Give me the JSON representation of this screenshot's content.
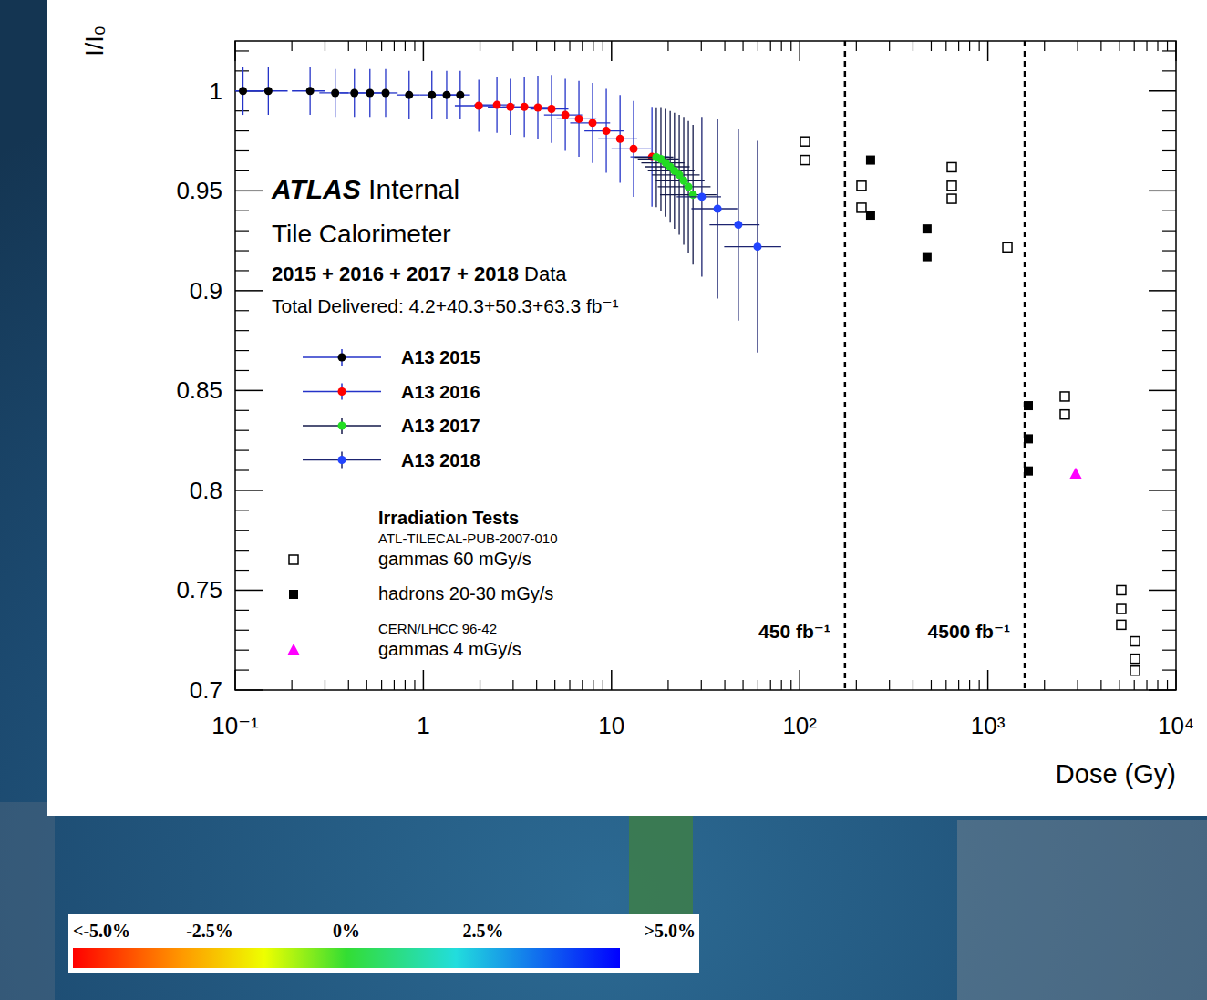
{
  "chart_data": {
    "type": "scatter",
    "x_label": "Dose (Gy)",
    "y_label": "I/I₀",
    "log": "x",
    "xlim": [
      0.1,
      10000
    ],
    "ylim": [
      0.7,
      1.025
    ],
    "xticks": [
      {
        "value": 0.1,
        "label": "10⁻¹"
      },
      1,
      10,
      {
        "value": 100,
        "label": "10²"
      },
      {
        "value": 1000,
        "label": "10³"
      },
      {
        "value": 10000,
        "label": "10⁴"
      }
    ],
    "yticks": [
      0.7,
      0.75,
      0.8,
      0.85,
      0.9,
      0.95,
      1
    ],
    "annotations": {
      "experiment": "ATLAS",
      "status": "Internal",
      "detector": "Tile Calorimeter",
      "years": "2015 + 2016 + 2017 + 2018",
      "data_word": "Data",
      "delivered": "Total Delivered: 4.2+40.3+50.3+63.3 fb⁻¹"
    },
    "legend": "left",
    "legend_title": "Irradiation Tests",
    "series": [
      {
        "name": "A13 2015",
        "color": "#000000",
        "marker": "circle",
        "x": [
          0.11,
          0.15,
          0.25,
          0.34,
          0.43,
          0.52,
          0.63,
          0.84,
          1.11,
          1.33,
          1.57
        ],
        "values": [
          1.0,
          1.0,
          1.0,
          0.999,
          0.999,
          0.999,
          0.999,
          0.998,
          0.998,
          0.998,
          0.998
        ],
        "x_errors": [
          0.03,
          0.04,
          0.05,
          0.06,
          0.07,
          0.08,
          0.1,
          0.12,
          0.15,
          0.18,
          0.2
        ],
        "y_errors": [
          0.012,
          0.012,
          0.012,
          0.012,
          0.012,
          0.012,
          0.012,
          0.012,
          0.012,
          0.012,
          0.012
        ]
      },
      {
        "name": "A13 2016",
        "color": "#ff0000",
        "marker": "circle",
        "x": [
          1.97,
          2.46,
          2.9,
          3.44,
          4.06,
          4.8,
          5.68,
          6.71,
          7.93,
          9.38,
          11.1,
          13.1,
          16.4
        ],
        "values": [
          0.9926,
          0.993,
          0.992,
          0.992,
          0.9917,
          0.991,
          0.988,
          0.986,
          0.984,
          0.98,
          0.976,
          0.971,
          0.967
        ],
        "x_errors": [
          0.5,
          0.6,
          0.7,
          0.8,
          0.9,
          1.1,
          1.3,
          1.6,
          1.9,
          2.2,
          2.6,
          3.1,
          3.8
        ],
        "y_errors": [
          0.013,
          0.014,
          0.014,
          0.015,
          0.016,
          0.017,
          0.018,
          0.019,
          0.02,
          0.021,
          0.022,
          0.024,
          0.025
        ]
      },
      {
        "name": "A13 2017",
        "color": "#22dd22",
        "marker": "circle",
        "x": [
          17.3,
          18.3,
          19.4,
          20.5,
          21.6,
          22.9,
          24.2,
          25.6,
          27.1
        ],
        "values": [
          0.9668,
          0.9659,
          0.964,
          0.962,
          0.96,
          0.958,
          0.955,
          0.952,
          0.948
        ],
        "x_errors": [
          4,
          4.5,
          5,
          5.5,
          6,
          6.5,
          7,
          8,
          9
        ],
        "y_errors": [
          0.025,
          0.026,
          0.027,
          0.028,
          0.029,
          0.03,
          0.032,
          0.033,
          0.035
        ]
      },
      {
        "name": "A13 2018",
        "color": "#2244ff",
        "marker": "circle",
        "x": [
          30.2,
          36.6,
          47.2,
          59.7
        ],
        "values": [
          0.947,
          0.941,
          0.933,
          0.922
        ],
        "x_errors": [
          8,
          10,
          14,
          20
        ],
        "y_errors": [
          0.04,
          0.045,
          0.048,
          0.053
        ]
      },
      {
        "name": "gammas 60 mGy/s",
        "reference": "ATL-TILECAL-PUB-2007-010",
        "color": "#000000",
        "marker": "open-square",
        "x": [
          106.7,
          106.7,
          213,
          213,
          643,
          643,
          643,
          1270,
          2564,
          2564,
          5117,
          5117,
          5117,
          6053,
          6053,
          6053
        ],
        "values": [
          0.9747,
          0.9654,
          0.9525,
          0.9415,
          0.9618,
          0.9525,
          0.946,
          0.9217,
          0.847,
          0.838,
          0.75,
          0.7406,
          0.7327,
          0.7244,
          0.7157,
          0.7097
        ]
      },
      {
        "name": "hadrons 20-30 mGy/s",
        "color": "#000000",
        "marker": "filled-square",
        "x": [
          238,
          238,
          475,
          475,
          1641,
          1641,
          1641
        ],
        "values": [
          0.9654,
          0.9378,
          0.9309,
          0.917,
          0.8424,
          0.8258,
          0.8097
        ]
      },
      {
        "name": "gammas 4 mGy/s",
        "reference": "CERN/LHCC 96-42",
        "color": "#ff00ff",
        "marker": "triangle",
        "x": [
          2931
        ],
        "values": [
          0.8083
        ]
      }
    ],
    "vlines": [
      {
        "x": 174,
        "label": "450 fb⁻¹"
      },
      {
        "x": 1570,
        "label": "4500 fb⁻¹"
      }
    ],
    "colorbar": {
      "range": [
        -5,
        5
      ],
      "ticks": [
        {
          "value": -5,
          "label": "<-5.0%"
        },
        {
          "value": -2.5,
          "label": "-2.5%"
        },
        {
          "value": 0,
          "label": "0%"
        },
        {
          "value": 2.5,
          "label": "2.5%"
        },
        {
          "value": 5,
          "label": ">5.0%"
        }
      ]
    }
  }
}
